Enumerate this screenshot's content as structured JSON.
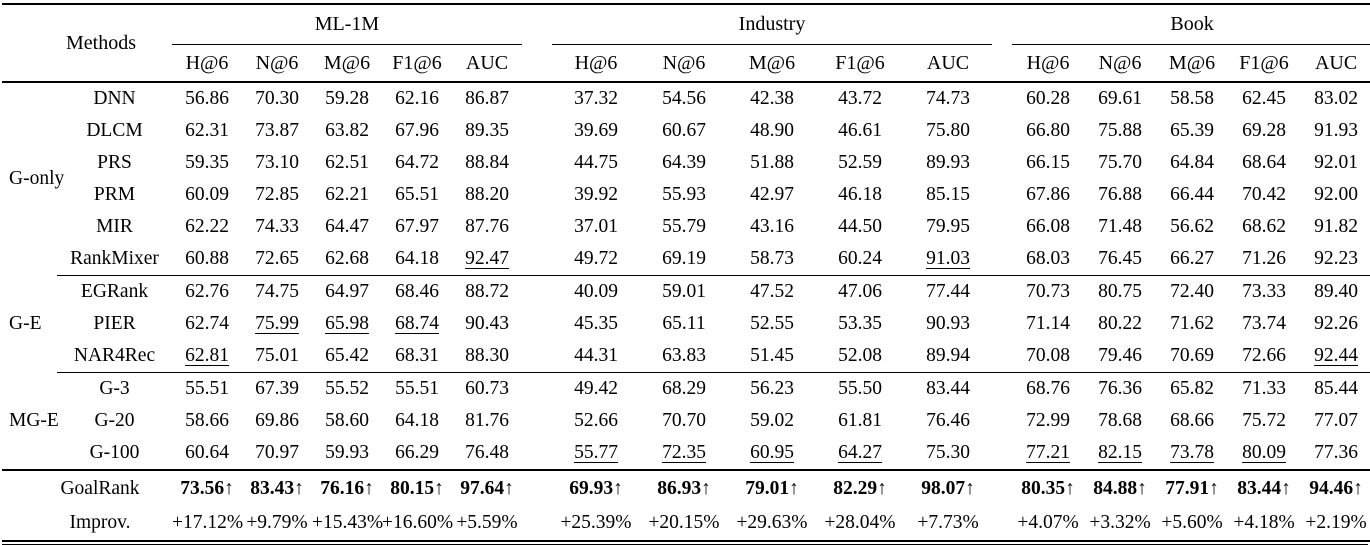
{
  "page": {
    "background": "#ffffff",
    "text_color": "#000000"
  },
  "table": {
    "methods_header": "Methods",
    "datasets": [
      {
        "name": "ML-1M",
        "metrics": [
          "H@6",
          "N@6",
          "M@6",
          "F1@6",
          "AUC"
        ]
      },
      {
        "name": "Industry",
        "metrics": [
          "H@6",
          "N@6",
          "M@6",
          "F1@6",
          "AUC"
        ]
      },
      {
        "name": "Book",
        "metrics": [
          "H@6",
          "N@6",
          "M@6",
          "F1@6",
          "AUC"
        ]
      }
    ],
    "groups": [
      {
        "label": "G-only",
        "rows": [
          {
            "method": "DNN",
            "values": [
              "56.86",
              "70.30",
              "59.28",
              "62.16",
              "86.87",
              "37.32",
              "54.56",
              "42.38",
              "43.72",
              "74.73",
              "60.28",
              "69.61",
              "58.58",
              "62.45",
              "83.02"
            ],
            "underline": []
          },
          {
            "method": "DLCM",
            "values": [
              "62.31",
              "73.87",
              "63.82",
              "67.96",
              "89.35",
              "39.69",
              "60.67",
              "48.90",
              "46.61",
              "75.80",
              "66.80",
              "75.88",
              "65.39",
              "69.28",
              "91.93"
            ],
            "underline": []
          },
          {
            "method": "PRS",
            "values": [
              "59.35",
              "73.10",
              "62.51",
              "64.72",
              "88.84",
              "44.75",
              "64.39",
              "51.88",
              "52.59",
              "89.93",
              "66.15",
              "75.70",
              "64.84",
              "68.64",
              "92.01"
            ],
            "underline": []
          },
          {
            "method": "PRM",
            "values": [
              "60.09",
              "72.85",
              "62.21",
              "65.51",
              "88.20",
              "39.92",
              "55.93",
              "42.97",
              "46.18",
              "85.15",
              "67.86",
              "76.88",
              "66.44",
              "70.42",
              "92.00"
            ],
            "underline": []
          },
          {
            "method": "MIR",
            "values": [
              "62.22",
              "74.33",
              "64.47",
              "67.97",
              "87.76",
              "37.01",
              "55.79",
              "43.16",
              "44.50",
              "79.95",
              "66.08",
              "71.48",
              "56.62",
              "68.62",
              "91.82"
            ],
            "underline": []
          },
          {
            "method": "RankMixer",
            "values": [
              "60.88",
              "72.65",
              "62.68",
              "64.18",
              "92.47",
              "49.72",
              "69.19",
              "58.73",
              "60.24",
              "91.03",
              "68.03",
              "76.45",
              "66.27",
              "71.26",
              "92.23"
            ],
            "underline": [
              4,
              9
            ]
          }
        ]
      },
      {
        "label": "G-E",
        "rows": [
          {
            "method": "EGRank",
            "values": [
              "62.76",
              "74.75",
              "64.97",
              "68.46",
              "88.72",
              "40.09",
              "59.01",
              "47.52",
              "47.06",
              "77.44",
              "70.73",
              "80.75",
              "72.40",
              "73.33",
              "89.40"
            ],
            "underline": []
          },
          {
            "method": "PIER",
            "values": [
              "62.74",
              "75.99",
              "65.98",
              "68.74",
              "90.43",
              "45.35",
              "65.11",
              "52.55",
              "53.35",
              "90.93",
              "71.14",
              "80.22",
              "71.62",
              "73.74",
              "92.26"
            ],
            "underline": [
              1,
              2,
              3
            ]
          },
          {
            "method": "NAR4Rec",
            "values": [
              "62.81",
              "75.01",
              "65.42",
              "68.31",
              "88.30",
              "44.31",
              "63.83",
              "51.45",
              "52.08",
              "89.94",
              "70.08",
              "79.46",
              "70.69",
              "72.66",
              "92.44"
            ],
            "underline": [
              0,
              14
            ]
          }
        ]
      },
      {
        "label": "MG-E",
        "rows": [
          {
            "method": "G-3",
            "values": [
              "55.51",
              "67.39",
              "55.52",
              "55.51",
              "60.73",
              "49.42",
              "68.29",
              "56.23",
              "55.50",
              "83.44",
              "68.76",
              "76.36",
              "65.82",
              "71.33",
              "85.44"
            ],
            "underline": []
          },
          {
            "method": "G-20",
            "values": [
              "58.66",
              "69.86",
              "58.60",
              "64.18",
              "81.76",
              "52.66",
              "70.70",
              "59.02",
              "61.81",
              "76.46",
              "72.99",
              "78.68",
              "68.66",
              "75.72",
              "77.07"
            ],
            "underline": []
          },
          {
            "method": "G-100",
            "values": [
              "60.64",
              "70.97",
              "59.93",
              "66.29",
              "76.48",
              "55.77",
              "72.35",
              "60.95",
              "64.27",
              "75.30",
              "77.21",
              "82.15",
              "73.78",
              "80.09",
              "77.36"
            ],
            "underline": [
              5,
              6,
              7,
              8,
              10,
              11,
              12,
              13
            ]
          }
        ]
      }
    ],
    "footer": {
      "goalrank": {
        "label": "GoalRank",
        "values": [
          "73.56↑",
          "83.43↑",
          "76.16↑",
          "80.15↑",
          "97.64↑",
          "69.93↑",
          "86.93↑",
          "79.01↑",
          "82.29↑",
          "98.07↑",
          "80.35↑",
          "84.88↑",
          "77.91↑",
          "83.44↑",
          "94.46↑"
        ]
      },
      "improv": {
        "label": "Improv.",
        "values": [
          "+17.12%",
          "+9.79%",
          "+15.43%",
          "+16.60%",
          "+5.59%",
          "+25.39%",
          "+20.15%",
          "+29.63%",
          "+28.04%",
          "+7.73%",
          "+4.07%",
          "+3.32%",
          "+5.60%",
          "+4.18%",
          "+2.19%"
        ]
      }
    }
  }
}
